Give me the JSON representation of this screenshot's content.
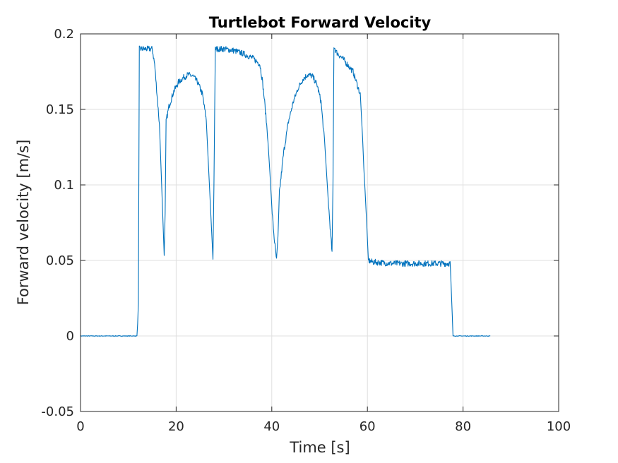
{
  "chart_data": {
    "type": "line",
    "title": "Turtlebot Forward Velocity",
    "xlabel": "Time [s]",
    "ylabel": "Forward velocity [m/s]",
    "xlim": [
      0,
      100
    ],
    "ylim": [
      -0.05,
      0.2
    ],
    "x_ticks": [
      0,
      20,
      40,
      60,
      80,
      100
    ],
    "y_ticks": [
      -0.05,
      0,
      0.05,
      0.1,
      0.15,
      0.2
    ],
    "x_tick_labels": [
      "0",
      "20",
      "40",
      "60",
      "80",
      "100"
    ],
    "y_tick_labels": [
      "-0.05",
      "0",
      "0.05",
      "0.1",
      "0.15",
      "0.2"
    ],
    "grid": true,
    "series": [
      {
        "color": "#0072bd",
        "x": [
          0,
          11.8,
          12.1,
          12.3,
          13,
          14,
          15,
          15.5,
          16.5,
          17.5,
          17.7,
          17.9,
          18.5,
          19.5,
          20.5,
          21.5,
          22.5,
          23.5,
          24.5,
          25.5,
          26.3,
          27.7,
          27.9,
          28.2,
          30,
          32,
          34,
          36,
          37.5,
          38,
          38.5,
          39.2,
          40,
          40.5,
          41,
          41.3,
          41.6,
          42.5,
          43.5,
          44.5,
          45.5,
          46.5,
          47.5,
          48.5,
          49.5,
          50.3,
          51,
          51.8,
          52.6,
          52.8,
          53,
          53.5,
          55,
          57,
          58.5,
          59,
          59.5,
          60.2,
          61,
          65,
          70,
          75,
          77.3,
          77.6,
          77.9,
          80,
          85.7
        ],
        "y": [
          0,
          0,
          0.02,
          0.19,
          0.19,
          0.19,
          0.19,
          0.18,
          0.14,
          0.055,
          0.08,
          0.142,
          0.152,
          0.162,
          0.168,
          0.171,
          0.173,
          0.172,
          0.168,
          0.16,
          0.143,
          0.052,
          0.1,
          0.19,
          0.19,
          0.189,
          0.187,
          0.184,
          0.18,
          0.17,
          0.155,
          0.13,
          0.085,
          0.065,
          0.05,
          0.065,
          0.095,
          0.122,
          0.142,
          0.155,
          0.164,
          0.17,
          0.173,
          0.172,
          0.166,
          0.155,
          0.13,
          0.09,
          0.055,
          0.1,
          0.192,
          0.188,
          0.183,
          0.175,
          0.16,
          0.13,
          0.095,
          0.05,
          0.049,
          0.048,
          0.048,
          0.048,
          0.048,
          0.025,
          0,
          0,
          0
        ]
      }
    ]
  }
}
